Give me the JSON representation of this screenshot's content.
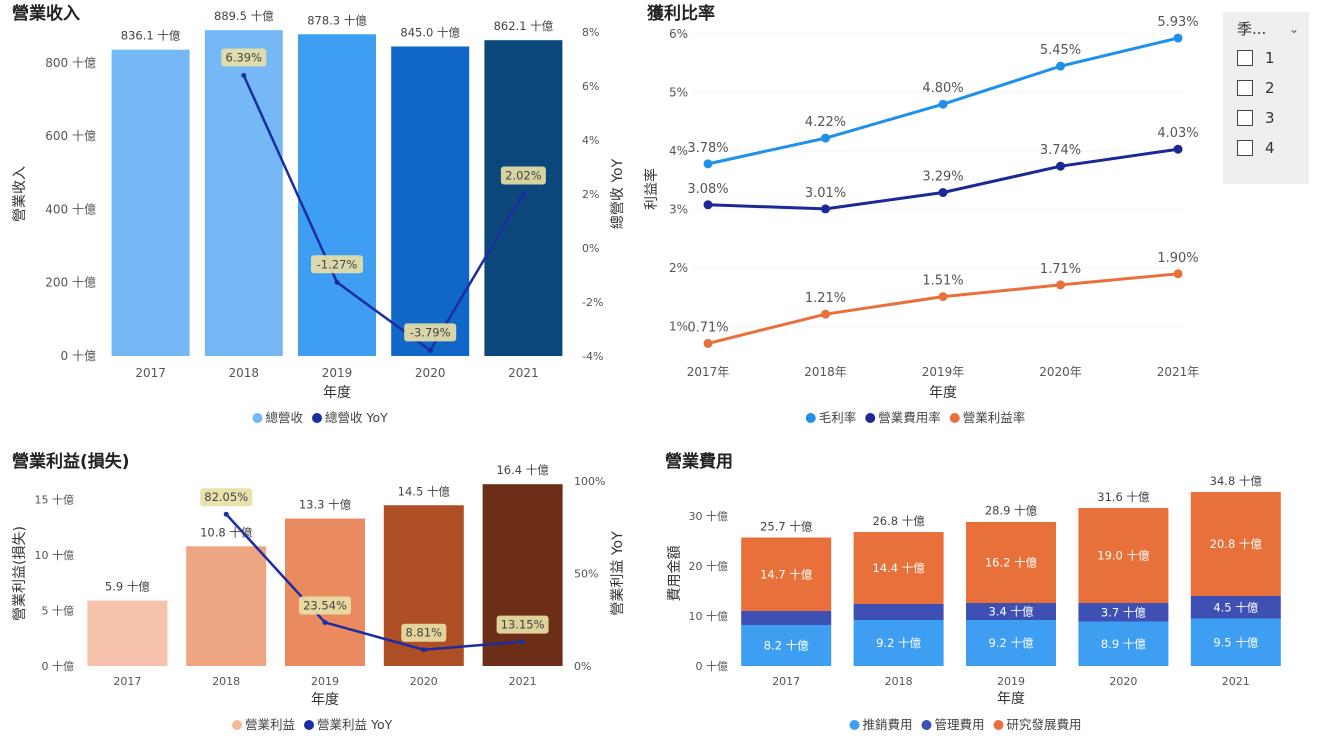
{
  "slicer": {
    "title": "季...",
    "items": [
      {
        "label": "1",
        "checked": false
      },
      {
        "label": "2",
        "checked": false
      },
      {
        "label": "3",
        "checked": false
      },
      {
        "label": "4",
        "checked": false
      }
    ]
  },
  "chart_data": [
    {
      "id": "revenue",
      "type": "bar+line",
      "title": "營業收入",
      "xlabel": "年度",
      "ylabel": "營業收入",
      "y2label": "總營收 YoY",
      "categories": [
        "2017",
        "2018",
        "2019",
        "2020",
        "2021"
      ],
      "bar_values": [
        836.1,
        889.5,
        878.3,
        845.0,
        862.1
      ],
      "bar_labels": [
        "836.1 十億",
        "889.5 十億",
        "878.3 十億",
        "845.0 十億",
        "862.1 十億"
      ],
      "bar_colors": [
        "#74b8f6",
        "#74b8f6",
        "#3d9ef2",
        "#1167c7",
        "#0c477c"
      ],
      "line_values": [
        null,
        6.39,
        -1.27,
        -3.79,
        2.02
      ],
      "line_labels": [
        "",
        "6.39%",
        "-1.27%",
        "-3.79%",
        "2.02%"
      ],
      "line_color": "#1b2da0",
      "ylim": [
        0,
        950
      ],
      "yticks": [
        0,
        200,
        400,
        600,
        800
      ],
      "ytick_labels": [
        "0 十億",
        "200 十億",
        "400 十億",
        "600 十億",
        "800 十億"
      ],
      "y2lim": [
        -4,
        8
      ],
      "y2ticks": [
        -4,
        -2,
        0,
        2,
        4,
        6,
        8
      ],
      "y2tick_labels": [
        "-4%",
        "-2%",
        "0%",
        "2%",
        "4%",
        "6%",
        "8%"
      ],
      "legend": [
        {
          "label": "總營收",
          "color": "#74b8f6"
        },
        {
          "label": "總營收 YoY",
          "color": "#1b2da0"
        }
      ]
    },
    {
      "id": "margins",
      "type": "line",
      "title": "獲利比率",
      "xlabel": "年度",
      "ylabel": "利益率",
      "categories": [
        "2017年",
        "2018年",
        "2019年",
        "2020年",
        "2021年"
      ],
      "ylim": [
        0.7,
        6.0
      ],
      "yticks": [
        1,
        2,
        3,
        4,
        5,
        6
      ],
      "ytick_labels": [
        "1%",
        "2%",
        "3%",
        "4%",
        "5%",
        "6%"
      ],
      "series": [
        {
          "name": "毛利率",
          "color": "#1f91ea",
          "values": [
            3.78,
            4.22,
            4.8,
            5.45,
            5.93
          ],
          "labels": [
            "3.78%",
            "4.22%",
            "4.80%",
            "5.45%",
            "5.93%"
          ]
        },
        {
          "name": "營業費用率",
          "color": "#1b2896",
          "values": [
            3.08,
            3.01,
            3.29,
            3.74,
            4.03
          ],
          "labels": [
            "3.08%",
            "3.01%",
            "3.29%",
            "3.74%",
            "4.03%"
          ]
        },
        {
          "name": "營業利益率",
          "color": "#e8703a",
          "values": [
            0.71,
            1.21,
            1.51,
            1.71,
            1.9
          ],
          "labels": [
            "0.71%",
            "1.21%",
            "1.51%",
            "1.71%",
            "1.90%"
          ]
        }
      ]
    },
    {
      "id": "opincome",
      "type": "bar+line",
      "title": "營業利益(損失)",
      "xlabel": "年度",
      "ylabel": "營業利益(損失)",
      "y2label": "營業利益 YoY",
      "categories": [
        "2017",
        "2018",
        "2019",
        "2020",
        "2021"
      ],
      "bar_values": [
        5.9,
        10.8,
        13.3,
        14.5,
        16.4
      ],
      "bar_labels": [
        "5.9 十億",
        "10.8 十億",
        "13.3 十億",
        "14.5 十億",
        "16.4 十億"
      ],
      "bar_colors": [
        "#f6c2ab",
        "#eea582",
        "#e98a5f",
        "#ae4e24",
        "#6c2e16"
      ],
      "line_values": [
        null,
        82.05,
        23.54,
        8.81,
        13.15
      ],
      "line_labels": [
        "",
        "82.05%",
        "23.54%",
        "8.81%",
        "13.15%"
      ],
      "line_color": "#1b2da0",
      "ylim": [
        0,
        17.5
      ],
      "yticks": [
        0,
        5,
        10,
        15
      ],
      "ytick_labels": [
        "0 十億",
        "5 十億",
        "10 十億",
        "15 十億"
      ],
      "y2lim": [
        0,
        100
      ],
      "y2ticks": [
        0,
        50,
        100
      ],
      "y2tick_labels": [
        "0%",
        "50%",
        "100%"
      ],
      "legend": [
        {
          "label": "營業利益",
          "color": "#f6b89c"
        },
        {
          "label": "營業利益 YoY",
          "color": "#1b2da0"
        }
      ]
    },
    {
      "id": "opex",
      "type": "stacked-bar",
      "title": "營業費用",
      "xlabel": "年度",
      "ylabel": "費用金額",
      "categories": [
        "2017",
        "2018",
        "2019",
        "2020",
        "2021"
      ],
      "ylim": [
        0,
        37
      ],
      "yticks": [
        0,
        10,
        20,
        30
      ],
      "ytick_labels": [
        "0 十億",
        "10 十億",
        "20 十億",
        "30 十億"
      ],
      "totals": [
        25.7,
        26.8,
        28.9,
        31.6,
        34.8
      ],
      "total_labels": [
        "25.7 十億",
        "26.8 十億",
        "28.9 十億",
        "31.6 十億",
        "34.8 十億"
      ],
      "series": [
        {
          "name": "推銷費用",
          "color": "#3d9ef2",
          "values": [
            8.2,
            9.2,
            9.2,
            8.9,
            9.5
          ],
          "labels": [
            "8.2 十億",
            "9.2 十億",
            "9.2 十億",
            "8.9 十億",
            "9.5 十億"
          ]
        },
        {
          "name": "管理費用",
          "color": "#3f50b5",
          "values": [
            2.8,
            3.2,
            3.4,
            3.7,
            4.5
          ],
          "labels": [
            "",
            "",
            "3.4 十億",
            "3.7 十億",
            "4.5 十億"
          ]
        },
        {
          "name": "研究發展費用",
          "color": "#e8703a",
          "values": [
            14.7,
            14.4,
            16.2,
            19.0,
            20.8
          ],
          "labels": [
            "14.7 十億",
            "14.4 十億",
            "16.2 十億",
            "19.0 十億",
            "20.8 十億"
          ]
        }
      ]
    }
  ]
}
